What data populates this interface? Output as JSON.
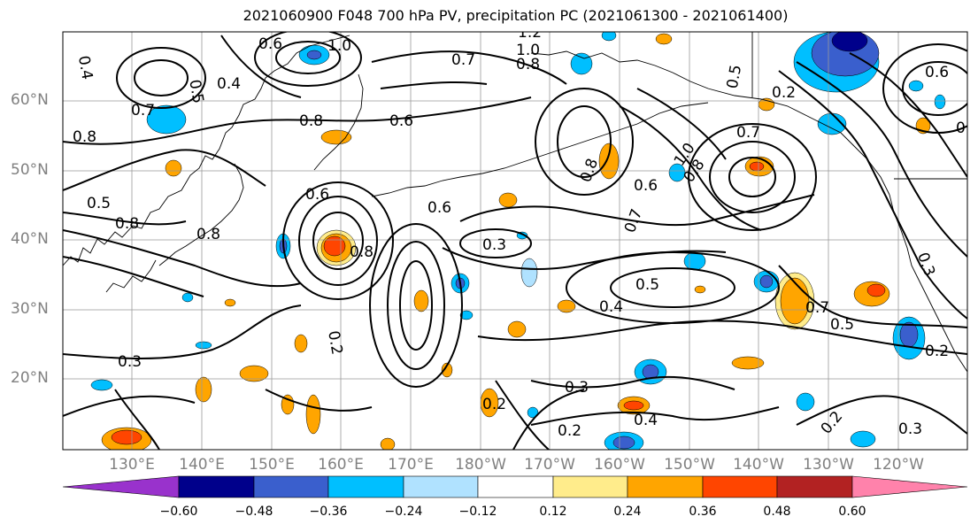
{
  "title": "2021060900 F048 700 hPa PV, precipitation PC (2021061300 - 2021061400)",
  "lat_labels": [
    "60°N",
    "50°N",
    "40°N",
    "30°N",
    "20°N"
  ],
  "lon_labels": [
    "130°E",
    "140°E",
    "150°E",
    "160°E",
    "170°E",
    "180°W",
    "170°W",
    "160°W",
    "150°W",
    "140°W",
    "130°W",
    "120°W"
  ],
  "colorbar": {
    "tick_labels": [
      "−0.60",
      "−0.48",
      "−0.36",
      "−0.24",
      "−0.12",
      "0.12",
      "0.24",
      "0.36",
      "0.48",
      "0.60"
    ],
    "colors": [
      "#9932cc",
      "#00008b",
      "#3a5fcd",
      "#00bfff",
      "#b0e2ff",
      "#ffffff",
      "#ffec8b",
      "#ffa500",
      "#ff4500",
      "#b22222",
      "#ff82ab"
    ]
  },
  "contour_labels": [
    "0.4",
    "0.5",
    "0.4",
    "0.7",
    "0.8",
    "0.8",
    "0.6",
    "0.6",
    "1.0",
    "0.7",
    "1.2",
    "1.0",
    "0.8",
    "0.5",
    "0.8",
    "0.8",
    "0.6",
    "0.8",
    "0.6",
    "0.3",
    "0.5",
    "0.4",
    "0.3",
    "0.2",
    "0.2",
    "0.7",
    "0.5",
    "0.7",
    "0.8",
    "1.0",
    "0.8",
    "0.6",
    "0.2",
    "0.7",
    "0.5",
    "0.2",
    "0.4",
    "0.3",
    "0.3",
    "0.2",
    "0.6",
    "0.3",
    "0.2",
    "0.7"
  ]
}
